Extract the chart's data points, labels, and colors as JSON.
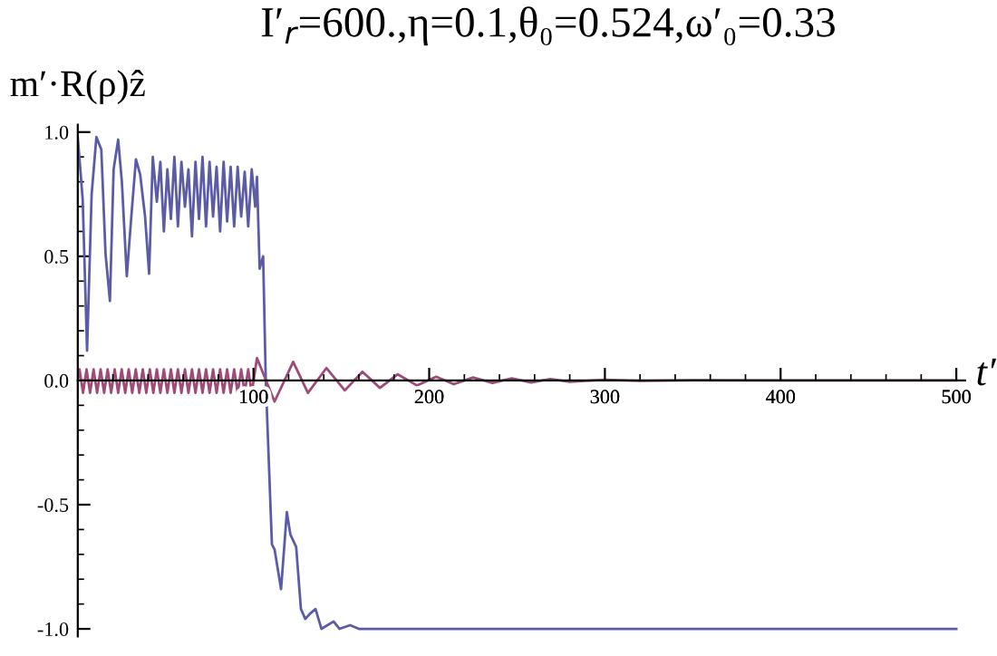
{
  "chart_data": {
    "type": "line",
    "title": "I′$_{r}$=600.,η=0.1,θ₀=0.524,ω′₀=0.33",
    "xlabel": "t′",
    "ylabel": "m′·R(ρ)ẑ",
    "xlim": [
      0,
      505
    ],
    "ylim": [
      -1.03,
      1.03
    ],
    "xticks": [
      100,
      200,
      300,
      400,
      500
    ],
    "yticks": [
      {
        "value": -1,
        "label": "-1.0"
      },
      -0.5,
      {
        "value": 0,
        "label": "0.0"
      },
      0.5,
      {
        "value": 1,
        "label": "1.0"
      }
    ],
    "grid": false,
    "legend": false,
    "marker": "none",
    "line_style": "solid",
    "series": [
      {
        "color": "#5b5ba6",
        "x": [
          0,
          2.8,
          5.3,
          7.9,
          10.6,
          13.4,
          15.8,
          18.3,
          20.4,
          23.0,
          25.1,
          27.9,
          30.7,
          33.1,
          35.5,
          38.3,
          40.6,
          42.7,
          45,
          47,
          49,
          51,
          53,
          55,
          57,
          59,
          61,
          63,
          65,
          67,
          69,
          71,
          73,
          75,
          77,
          79,
          81,
          83,
          85,
          87,
          89,
          91,
          93,
          95,
          97,
          99,
          101,
          102,
          103.5,
          105.5,
          107,
          110.5,
          112,
          115.7,
          119,
          121,
          124.3,
          127,
          129.5,
          132,
          135.3,
          138.7,
          145.6,
          149,
          155,
          160,
          200,
          300,
          400,
          500
        ],
        "values": [
          0.98,
          0.73,
          0.12,
          0.75,
          0.98,
          0.93,
          0.51,
          0.32,
          0.85,
          0.97,
          0.8,
          0.42,
          0.68,
          0.89,
          0.83,
          0.66,
          0.43,
          0.9,
          0.72,
          0.88,
          0.6,
          0.85,
          0.65,
          0.9,
          0.62,
          0.88,
          0.7,
          0.85,
          0.58,
          0.88,
          0.65,
          0.9,
          0.62,
          0.88,
          0.66,
          0.86,
          0.6,
          0.88,
          0.64,
          0.86,
          0.62,
          0.86,
          0.66,
          0.84,
          0.62,
          0.85,
          0.7,
          0.82,
          0.45,
          0.5,
          0.0,
          -0.66,
          -0.68,
          -0.84,
          -0.53,
          -0.62,
          -0.67,
          -0.92,
          -0.96,
          -0.94,
          -0.92,
          -1.0,
          -0.97,
          -1.0,
          -0.985,
          -1.0,
          -1.0,
          -1.0,
          -1.0,
          -1.0
        ]
      },
      {
        "color": "#a04a7a",
        "x": [
          0,
          1,
          3,
          5,
          7,
          9,
          11,
          13,
          15,
          17,
          19,
          21,
          23,
          25,
          27,
          29,
          31,
          33,
          35,
          37,
          39,
          41,
          43,
          45,
          47,
          49,
          51,
          53,
          55,
          57,
          59,
          61,
          63,
          65,
          67,
          69,
          71,
          73,
          75,
          77,
          79,
          81,
          83,
          85,
          87,
          89,
          91,
          93,
          95,
          97,
          99,
          102,
          112,
          122.6,
          131,
          141.5,
          152,
          162,
          172,
          182,
          193,
          204,
          214,
          225,
          236,
          247,
          258,
          269,
          280,
          300,
          320,
          350,
          400,
          500
        ],
        "values": [
          0.0,
          0.045,
          -0.05,
          0.045,
          -0.05,
          0.045,
          -0.05,
          0.045,
          -0.05,
          0.045,
          -0.05,
          0.045,
          -0.05,
          0.045,
          -0.05,
          0.045,
          -0.05,
          0.045,
          -0.05,
          0.045,
          -0.05,
          0.045,
          -0.05,
          0.045,
          -0.05,
          0.045,
          -0.05,
          0.045,
          -0.05,
          0.045,
          -0.05,
          0.045,
          -0.05,
          0.045,
          -0.05,
          0.045,
          -0.05,
          0.045,
          -0.05,
          0.045,
          -0.05,
          0.045,
          -0.05,
          0.045,
          -0.05,
          0.045,
          -0.05,
          0.045,
          -0.05,
          0.045,
          -0.05,
          0.09,
          -0.085,
          0.075,
          -0.05,
          0.05,
          -0.04,
          0.035,
          -0.03,
          0.025,
          -0.02,
          0.015,
          -0.015,
          0.012,
          -0.01,
          0.008,
          -0.008,
          0.006,
          -0.005,
          0.003,
          -0.002,
          0.001,
          0.0,
          0.0
        ]
      }
    ]
  }
}
